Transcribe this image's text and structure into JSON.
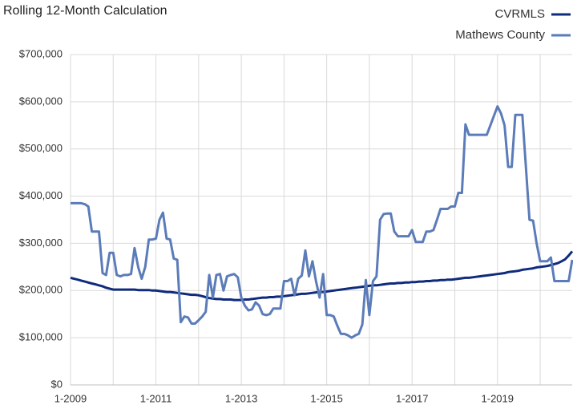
{
  "chart_data": {
    "type": "line",
    "title": "Rolling 12-Month Calculation",
    "categories": [
      "1-2009",
      null,
      null,
      null,
      null,
      null,
      null,
      null,
      null,
      null,
      null,
      null,
      null,
      null,
      null,
      null,
      null,
      null,
      null,
      null,
      null,
      null,
      null,
      null,
      "1-2011",
      null,
      null,
      null,
      null,
      null,
      null,
      null,
      null,
      null,
      null,
      null,
      null,
      null,
      null,
      null,
      null,
      null,
      null,
      null,
      null,
      null,
      null,
      null,
      "1-2013",
      null,
      null,
      null,
      null,
      null,
      null,
      null,
      null,
      null,
      null,
      null,
      null,
      null,
      null,
      null,
      null,
      null,
      null,
      null,
      null,
      null,
      null,
      null,
      "1-2015",
      null,
      null,
      null,
      null,
      null,
      null,
      null,
      null,
      null,
      null,
      null,
      null,
      null,
      null,
      null,
      null,
      null,
      null,
      null,
      null,
      null,
      null,
      null,
      "1-2017",
      null,
      null,
      null,
      null,
      null,
      null,
      null,
      null,
      null,
      null,
      null,
      null,
      null,
      null,
      null,
      null,
      null,
      null,
      null,
      null,
      null,
      null,
      null,
      "1-2019",
      null,
      null,
      null,
      null,
      null,
      null,
      null,
      null,
      null,
      null,
      null,
      null,
      null,
      null,
      null,
      null,
      null,
      null,
      null,
      null,
      null
    ],
    "series": [
      {
        "name": "CVRMLS",
        "color": "#102b7c",
        "values": [
          227000,
          225000,
          223000,
          221000,
          219000,
          217000,
          215000,
          213000,
          211000,
          209000,
          206000,
          204000,
          202000,
          202000,
          202000,
          202000,
          202000,
          202000,
          202000,
          201000,
          201000,
          201000,
          201000,
          200000,
          200000,
          199000,
          198000,
          197000,
          197000,
          196000,
          195000,
          194000,
          193000,
          192000,
          191000,
          191000,
          190000,
          188000,
          186000,
          184000,
          183000,
          182000,
          182000,
          181000,
          181000,
          181000,
          180000,
          180000,
          180000,
          181000,
          181000,
          182000,
          183000,
          184000,
          185000,
          185000,
          186000,
          186000,
          187000,
          187000,
          188000,
          189000,
          190000,
          191000,
          192000,
          193000,
          193000,
          194000,
          195000,
          196000,
          197000,
          197000,
          198000,
          199000,
          200000,
          201000,
          202000,
          203000,
          204000,
          205000,
          206000,
          207000,
          208000,
          209000,
          210000,
          211000,
          211000,
          212000,
          213000,
          214000,
          215000,
          215000,
          216000,
          216000,
          217000,
          217000,
          218000,
          218000,
          219000,
          219000,
          220000,
          220000,
          221000,
          221000,
          222000,
          222000,
          223000,
          223000,
          224000,
          225000,
          226000,
          227000,
          227000,
          228000,
          229000,
          230000,
          231000,
          232000,
          233000,
          234000,
          235000,
          236000,
          237000,
          239000,
          240000,
          241000,
          242000,
          244000,
          245000,
          246000,
          247000,
          249000,
          250000,
          251000,
          252000,
          254000,
          256000,
          258000,
          262000,
          266000,
          274000,
          283000
        ]
      },
      {
        "name": "Mathews County",
        "color": "#5b7cb9",
        "values": [
          385000,
          385000,
          385000,
          385000,
          383000,
          378000,
          325000,
          325000,
          325000,
          237000,
          233000,
          280000,
          280000,
          233000,
          230000,
          233000,
          233000,
          235000,
          290000,
          250000,
          225000,
          250000,
          308000,
          308000,
          310000,
          350000,
          365000,
          310000,
          308000,
          268000,
          265000,
          133000,
          145000,
          143000,
          130000,
          130000,
          137000,
          145000,
          155000,
          233000,
          185000,
          233000,
          235000,
          200000,
          230000,
          233000,
          235000,
          228000,
          185000,
          168000,
          158000,
          160000,
          175000,
          168000,
          150000,
          148000,
          150000,
          162000,
          162000,
          162000,
          220000,
          220000,
          225000,
          190000,
          225000,
          232000,
          285000,
          230000,
          262000,
          220000,
          185000,
          235000,
          148000,
          148000,
          145000,
          125000,
          108000,
          108000,
          105000,
          100000,
          105000,
          108000,
          128000,
          222000,
          148000,
          220000,
          230000,
          350000,
          362000,
          363000,
          363000,
          325000,
          315000,
          315000,
          315000,
          315000,
          328000,
          303000,
          303000,
          303000,
          325000,
          325000,
          328000,
          350000,
          373000,
          373000,
          373000,
          378000,
          378000,
          407000,
          407000,
          552000,
          530000,
          530000,
          530000,
          530000,
          530000,
          530000,
          550000,
          570000,
          590000,
          575000,
          550000,
          462000,
          462000,
          572000,
          572000,
          572000,
          460000,
          350000,
          348000,
          300000,
          262000,
          262000,
          262000,
          270000,
          220000,
          220000,
          220000,
          220000,
          220000,
          265000
        ]
      }
    ],
    "ylim": [
      0,
      700000
    ],
    "yticks": [
      {
        "value": 0,
        "label": "$0"
      },
      {
        "value": 100000,
        "label": "$100,000"
      },
      {
        "value": 200000,
        "label": "$200,000"
      },
      {
        "value": 300000,
        "label": "$300,000"
      },
      {
        "value": 400000,
        "label": "$400,000"
      },
      {
        "value": 500000,
        "label": "$500,000"
      },
      {
        "value": 600000,
        "label": "$600,000"
      },
      {
        "value": 700000,
        "label": "$700,000"
      }
    ],
    "grid": true,
    "legend": "top-right"
  }
}
